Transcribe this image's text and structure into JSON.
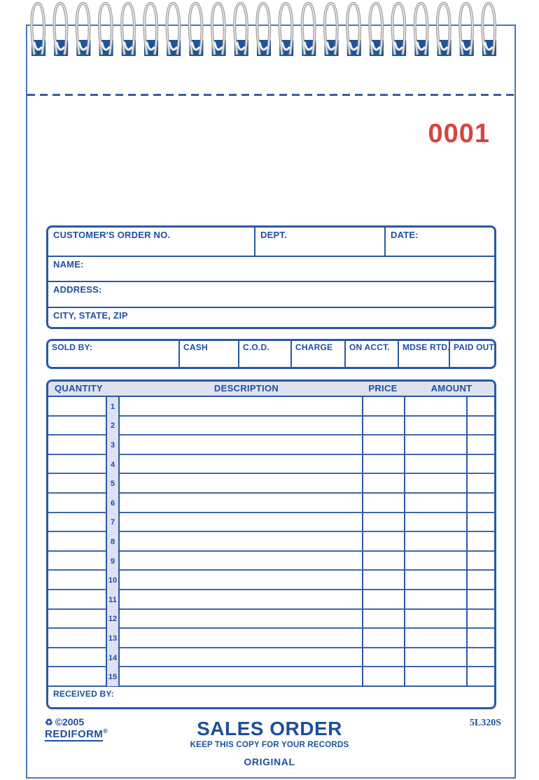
{
  "form": {
    "serial_number": "0001"
  },
  "customer_block": {
    "order_no_label": "CUSTOMER'S ORDER NO.",
    "dept_label": "DEPT.",
    "date_label": "DATE:",
    "name_label": "NAME:",
    "address_label": "ADDRESS:",
    "city_state_zip_label": "CITY, STATE, ZIP"
  },
  "payment_row": {
    "sold_by_label": "SOLD BY:",
    "options": [
      "CASH",
      "C.O.D.",
      "CHARGE",
      "ON ACCT.",
      "MDSE RTD.",
      "PAID OUT"
    ]
  },
  "items_table": {
    "headers": {
      "quantity": "QUANTITY",
      "description": "DESCRIPTION",
      "price": "PRICE",
      "amount": "AMOUNT"
    },
    "row_numbers": [
      "1",
      "2",
      "3",
      "4",
      "5",
      "6",
      "7",
      "8",
      "9",
      "10",
      "11",
      "12",
      "13",
      "14",
      "15"
    ],
    "received_by_label": "RECEIVED BY:"
  },
  "footer": {
    "recycle_icon": "♻",
    "copyright": "©2005",
    "brand": "REDIFORM",
    "registered_mark": "®",
    "title": "SALES ORDER",
    "subtitle": "KEEP THIS COPY FOR YOUR RECORDS",
    "copy_type": "ORIGINAL",
    "product_code": "5L320S"
  },
  "colors": {
    "form_blue": "#1d4f9c",
    "border_blue": "#2b58a4",
    "header_band_bg": "#dee2f0",
    "serial_red": "#d64540",
    "binding_hole_blue": "#1f5596",
    "coil_gray": "#9c9c9c",
    "perforation_blue": "#3a5f9e"
  }
}
